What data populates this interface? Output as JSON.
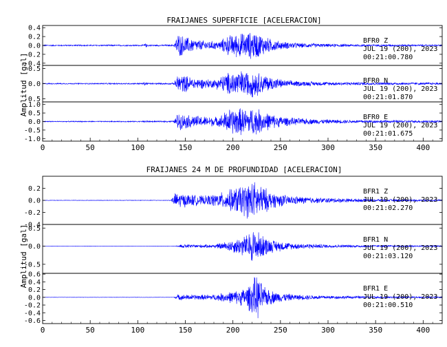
{
  "chart_data": [
    {
      "type": "line",
      "title": "FRAIJANES SUPERFICIE [ACELERACION]",
      "ylabel": "Amplitud [gal]",
      "xlim": [
        0,
        420
      ],
      "xticks": [
        0,
        50,
        100,
        150,
        200,
        250,
        300,
        350,
        400
      ],
      "line_color": "#0000ff",
      "panels": [
        {
          "station": "BFR0",
          "component": "Z",
          "date": "JUL 19 (200), 2023",
          "time": "00:21:00.780",
          "ylim": [
            -0.45,
            0.45
          ],
          "yticks": [
            "0.4",
            "0.2",
            "0.0",
            "-0.2",
            "-0.4"
          ],
          "envelope": [
            [
              0,
              0.015
            ],
            [
              105,
              0.018
            ],
            [
              108,
              0.05
            ],
            [
              112,
              0.018
            ],
            [
              138,
              0.02
            ],
            [
              142,
              0.3
            ],
            [
              150,
              0.22
            ],
            [
              160,
              0.15
            ],
            [
              170,
              0.12
            ],
            [
              185,
              0.1
            ],
            [
              195,
              0.25
            ],
            [
              205,
              0.3
            ],
            [
              215,
              0.32
            ],
            [
              222,
              0.35
            ],
            [
              228,
              0.3
            ],
            [
              235,
              0.2
            ],
            [
              250,
              0.1
            ],
            [
              270,
              0.06
            ],
            [
              300,
              0.04
            ],
            [
              330,
              0.03
            ],
            [
              370,
              0.025
            ],
            [
              420,
              0.02
            ]
          ]
        },
        {
          "station": "BFR0",
          "component": "N",
          "date": "JUL 19 (200), 2023",
          "time": "00:21:01.870",
          "ylim": [
            -0.6,
            0.6
          ],
          "yticks": [
            "0.5",
            "0.0",
            "-0.5"
          ],
          "envelope": [
            [
              0,
              0.02
            ],
            [
              105,
              0.025
            ],
            [
              108,
              0.08
            ],
            [
              112,
              0.025
            ],
            [
              138,
              0.03
            ],
            [
              142,
              0.35
            ],
            [
              150,
              0.3
            ],
            [
              160,
              0.2
            ],
            [
              180,
              0.15
            ],
            [
              195,
              0.4
            ],
            [
              205,
              0.48
            ],
            [
              215,
              0.45
            ],
            [
              222,
              0.5
            ],
            [
              230,
              0.35
            ],
            [
              240,
              0.25
            ],
            [
              255,
              0.12
            ],
            [
              280,
              0.08
            ],
            [
              310,
              0.06
            ],
            [
              350,
              0.05
            ],
            [
              420,
              0.04
            ]
          ]
        },
        {
          "station": "BFR0",
          "component": "E",
          "date": "JUL 19 (200), 2023",
          "time": "00:21:01.675",
          "ylim": [
            -1.15,
            1.15
          ],
          "yticks": [
            "1.0",
            "0.5",
            "0.0",
            "-0.5",
            "-1.0"
          ],
          "envelope": [
            [
              0,
              0.03
            ],
            [
              105,
              0.035
            ],
            [
              108,
              0.1
            ],
            [
              112,
              0.035
            ],
            [
              138,
              0.05
            ],
            [
              142,
              0.55
            ],
            [
              150,
              0.45
            ],
            [
              165,
              0.35
            ],
            [
              185,
              0.3
            ],
            [
              195,
              0.8
            ],
            [
              205,
              0.9
            ],
            [
              215,
              0.8
            ],
            [
              222,
              0.95
            ],
            [
              230,
              0.7
            ],
            [
              245,
              0.4
            ],
            [
              260,
              0.25
            ],
            [
              290,
              0.15
            ],
            [
              330,
              0.1
            ],
            [
              380,
              0.08
            ],
            [
              420,
              0.07
            ]
          ]
        }
      ]
    },
    {
      "type": "line",
      "title": "FRAIJANES 24 M DE PROFUNDIDAD [ACELERACION]",
      "ylabel": "Amplitud [gal]",
      "xlim": [
        0,
        420
      ],
      "xticks": [
        0,
        50,
        100,
        150,
        200,
        250,
        300,
        350,
        400
      ],
      "line_color": "#0000ff",
      "panels": [
        {
          "station": "BFR1",
          "component": "Z",
          "date": "JUL 19 (200), 2023",
          "time": "00:21:02.270",
          "ylim": [
            -0.4,
            0.4
          ],
          "yticks": [
            "0.2",
            "0.0",
            "-0.2",
            "-0.4"
          ],
          "envelope": [
            [
              0,
              0.004
            ],
            [
              135,
              0.005
            ],
            [
              140,
              0.15
            ],
            [
              150,
              0.12
            ],
            [
              170,
              0.08
            ],
            [
              190,
              0.15
            ],
            [
              205,
              0.25
            ],
            [
              215,
              0.32
            ],
            [
              222,
              0.35
            ],
            [
              230,
              0.28
            ],
            [
              240,
              0.15
            ],
            [
              260,
              0.08
            ],
            [
              290,
              0.05
            ],
            [
              330,
              0.03
            ],
            [
              380,
              0.02
            ],
            [
              420,
              0.015
            ]
          ]
        },
        {
          "station": "BFR1",
          "component": "N",
          "date": "JUL 19 (200), 2023",
          "time": "00:21:03.120",
          "ylim": [
            -0.75,
            0.6
          ],
          "yticks": [
            "0.5",
            "0.0",
            "-0.5"
          ],
          "envelope": [
            [
              0,
              0.004
            ],
            [
              140,
              0.005
            ],
            [
              145,
              0.06
            ],
            [
              160,
              0.05
            ],
            [
              180,
              0.05
            ],
            [
              195,
              0.15
            ],
            [
              205,
              0.25
            ],
            [
              215,
              0.35
            ],
            [
              222,
              0.55
            ],
            [
              228,
              0.4
            ],
            [
              240,
              0.2
            ],
            [
              260,
              0.1
            ],
            [
              300,
              0.05
            ],
            [
              350,
              0.03
            ],
            [
              420,
              0.02
            ]
          ]
        },
        {
          "station": "BFR1",
          "component": "E",
          "date": "JUL 19 (200), 2023",
          "time": "00:21:00.510",
          "ylim": [
            -0.68,
            0.62
          ],
          "yticks": [
            "0.6",
            "0.4",
            "0.2",
            "0.0",
            "-0.2",
            "-0.4",
            "-0.6"
          ],
          "envelope": [
            [
              0,
              0.004
            ],
            [
              138,
              0.005
            ],
            [
              142,
              0.08
            ],
            [
              160,
              0.07
            ],
            [
              180,
              0.08
            ],
            [
              195,
              0.15
            ],
            [
              205,
              0.2
            ],
            [
              215,
              0.3
            ],
            [
              222,
              0.55
            ],
            [
              226,
              0.62
            ],
            [
              232,
              0.3
            ],
            [
              245,
              0.15
            ],
            [
              265,
              0.08
            ],
            [
              300,
              0.05
            ],
            [
              350,
              0.03
            ],
            [
              420,
              0.02
            ]
          ]
        }
      ]
    }
  ]
}
